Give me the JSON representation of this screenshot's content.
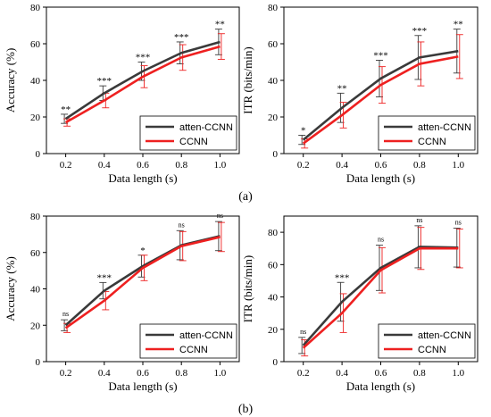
{
  "captions": [
    "(a)",
    "(b)"
  ],
  "colors": {
    "atten": "#3a3a3a",
    "ccnn": "#ee2020"
  },
  "chart_data": [
    {
      "id": "a-left",
      "type": "line",
      "xlabel": "Data length (s)",
      "ylabel": "Accuracy (%)",
      "x": [
        0.2,
        0.4,
        0.6,
        0.8,
        1.0
      ],
      "xticks": [
        "0.2",
        "0.4",
        "0.6",
        "0.8",
        "1.0"
      ],
      "xlim": [
        0.1,
        1.1
      ],
      "ylim": [
        0,
        80
      ],
      "yticks": [
        0,
        20,
        40,
        60,
        80
      ],
      "legend": "bottom-right",
      "series": [
        {
          "name": "atten-CCNN",
          "color": "#3a3a3a",
          "values": [
            19,
            33,
            45,
            55,
            61
          ],
          "err": [
            2.5,
            4,
            5,
            6,
            7
          ]
        },
        {
          "name": "CCNN",
          "color": "#ee2020",
          "values": [
            17,
            29,
            42,
            52.5,
            58.5
          ],
          "err": [
            2,
            4,
            6,
            7,
            7
          ]
        }
      ],
      "significance": [
        "**",
        "***",
        "***",
        "***",
        "**"
      ],
      "grid": false
    },
    {
      "id": "a-right",
      "type": "line",
      "xlabel": "Data length (s)",
      "ylabel": "ITR (bits/min)",
      "x": [
        0.2,
        0.4,
        0.6,
        0.8,
        1.0
      ],
      "xticks": [
        "0.2",
        "0.4",
        "0.6",
        "0.8",
        "1.0"
      ],
      "xlim": [
        0.1,
        1.1
      ],
      "ylim": [
        0,
        80
      ],
      "yticks": [
        0,
        20,
        40,
        60,
        80
      ],
      "legend": "bottom-right",
      "series": [
        {
          "name": "atten-CCNN",
          "color": "#3a3a3a",
          "values": [
            7.5,
            25,
            41,
            52.5,
            56
          ],
          "err": [
            2.5,
            8,
            10,
            12,
            12
          ]
        },
        {
          "name": "CCNN",
          "color": "#ee2020",
          "values": [
            5.5,
            21,
            37.5,
            49,
            53
          ],
          "err": [
            2.5,
            7,
            10,
            12,
            12
          ]
        }
      ],
      "significance": [
        "*",
        "**",
        "***",
        "***",
        "**"
      ],
      "grid": false
    },
    {
      "id": "b-left",
      "type": "line",
      "xlabel": "Data length (s)",
      "ylabel": "Accuracy (%)",
      "x": [
        0.2,
        0.4,
        0.6,
        0.8,
        1.0
      ],
      "xticks": [
        "0.2",
        "0.4",
        "0.6",
        "0.8",
        "1.0"
      ],
      "xlim": [
        0.1,
        1.1
      ],
      "ylim": [
        0,
        80
      ],
      "yticks": [
        0,
        20,
        40,
        60,
        80
      ],
      "legend": "bottom-right",
      "series": [
        {
          "name": "atten-CCNN",
          "color": "#3a3a3a",
          "values": [
            20,
            39,
            52.5,
            64,
            69
          ],
          "err": [
            3,
            4.5,
            6,
            8,
            8
          ]
        },
        {
          "name": "CCNN",
          "color": "#ee2020",
          "values": [
            18.5,
            33.5,
            51.5,
            63.5,
            68.5
          ],
          "err": [
            2.5,
            5,
            7,
            8,
            8
          ]
        }
      ],
      "significance": [
        "ns",
        "***",
        "*",
        "ns",
        "ns"
      ],
      "grid": false
    },
    {
      "id": "b-right",
      "type": "line",
      "xlabel": "Data length (s)",
      "ylabel": "ITR (bits/min)",
      "x": [
        0.2,
        0.4,
        0.6,
        0.8,
        1.0
      ],
      "xticks": [
        "0.2",
        "0.4",
        "0.6",
        "0.8",
        "1.0"
      ],
      "xlim": [
        0.1,
        1.1
      ],
      "ylim": [
        0,
        90
      ],
      "yticks": [
        0,
        20,
        40,
        60,
        80
      ],
      "legend": "bottom-right",
      "series": [
        {
          "name": "atten-CCNN",
          "color": "#3a3a3a",
          "values": [
            10,
            37,
            58,
            71,
            70.5
          ],
          "err": [
            5,
            12,
            14,
            13,
            12
          ]
        },
        {
          "name": "CCNN",
          "color": "#ee2020",
          "values": [
            8.5,
            30,
            56.5,
            70,
            70
          ],
          "err": [
            5,
            12,
            14,
            13,
            12
          ]
        }
      ],
      "significance": [
        "ns",
        "***",
        "ns",
        "ns",
        "ns"
      ],
      "grid": false
    }
  ]
}
